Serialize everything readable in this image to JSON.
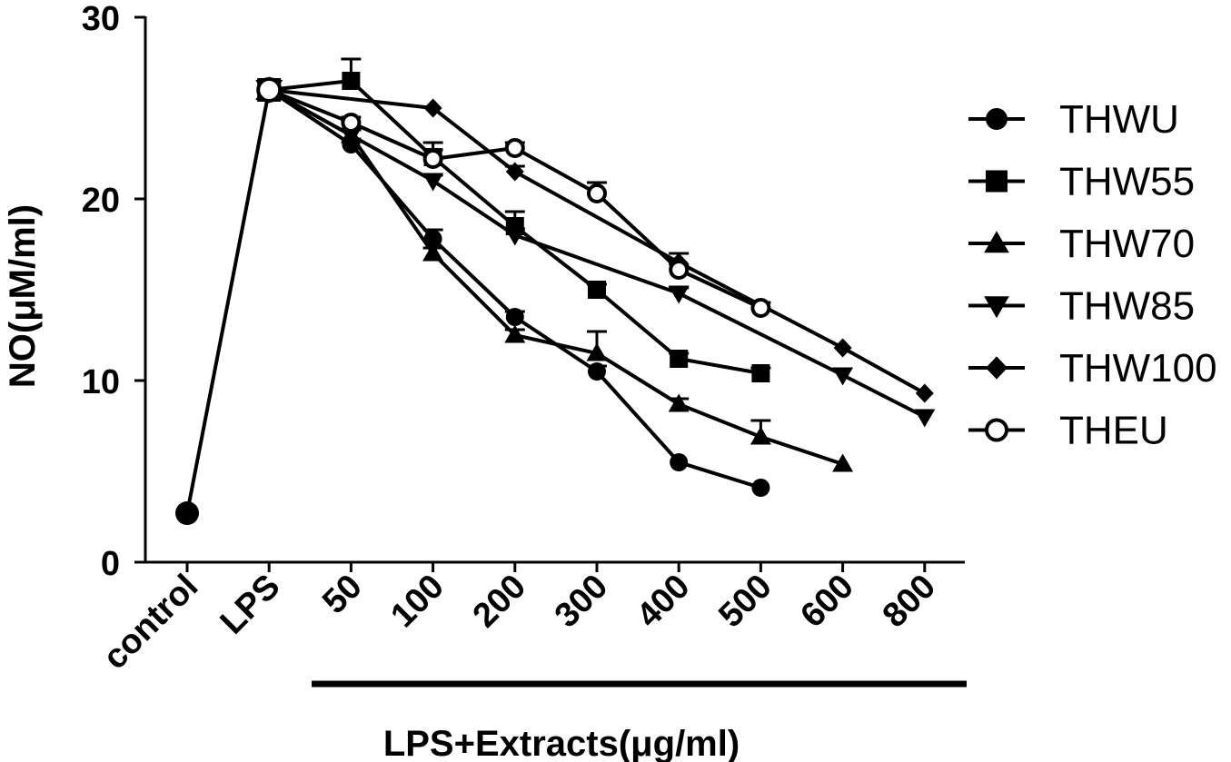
{
  "chart_data": {
    "type": "line",
    "title": "",
    "ylabel": "NO(μM/ml)",
    "xlabel": "LPS+Extracts(μg/ml)",
    "ylim": [
      0,
      30
    ],
    "yticks": [
      0,
      10,
      20,
      30
    ],
    "categories": [
      "control",
      "LPS",
      "50",
      "100",
      "200",
      "300",
      "400",
      "500",
      "600",
      "800"
    ],
    "grid": false,
    "legend_position": "right",
    "series": [
      {
        "name": "THWU",
        "marker": "circle-filled",
        "values": [
          2.7,
          26.0,
          23.0,
          17.8,
          13.5,
          10.5,
          5.5,
          4.1,
          null,
          null
        ],
        "errors": [
          0,
          0,
          0.3,
          0.5,
          0.3,
          0.3,
          0.2,
          0.2,
          null,
          null
        ]
      },
      {
        "name": "THW55",
        "marker": "square-filled",
        "values": [
          null,
          26.0,
          26.5,
          22.3,
          18.5,
          15.0,
          11.2,
          10.4,
          null,
          null
        ],
        "errors": [
          null,
          0,
          1.2,
          0.8,
          0.8,
          0.3,
          0.3,
          0.3,
          null,
          null
        ]
      },
      {
        "name": "THW70",
        "marker": "triangle-up-filled",
        "values": [
          null,
          26.0,
          23.5,
          17.0,
          12.5,
          11.5,
          8.7,
          6.9,
          5.4,
          null
        ],
        "errors": [
          null,
          0,
          0.3,
          0.3,
          0.3,
          1.2,
          0.3,
          0.9,
          0.2,
          null
        ]
      },
      {
        "name": "THW85",
        "marker": "triangle-down-filled",
        "values": [
          null,
          26.0,
          23.5,
          21.0,
          18.0,
          null,
          14.8,
          null,
          10.3,
          8.0
        ],
        "errors": [
          null,
          0,
          0.3,
          0.3,
          0.3,
          null,
          0.3,
          null,
          0.2,
          0.2
        ]
      },
      {
        "name": "THW100",
        "marker": "diamond-filled",
        "values": [
          null,
          26.0,
          null,
          25.0,
          21.5,
          null,
          16.5,
          null,
          11.8,
          9.3
        ],
        "errors": [
          null,
          0,
          null,
          0.2,
          0.3,
          null,
          0.5,
          null,
          0.2,
          0.2
        ]
      },
      {
        "name": "THEU",
        "marker": "circle-open",
        "values": [
          null,
          26.0,
          24.2,
          22.2,
          22.8,
          20.3,
          16.1,
          14.0,
          null,
          null
        ],
        "errors": [
          null,
          0,
          0.3,
          0.5,
          0.3,
          0.6,
          0.3,
          0.3,
          null,
          null
        ]
      }
    ]
  }
}
